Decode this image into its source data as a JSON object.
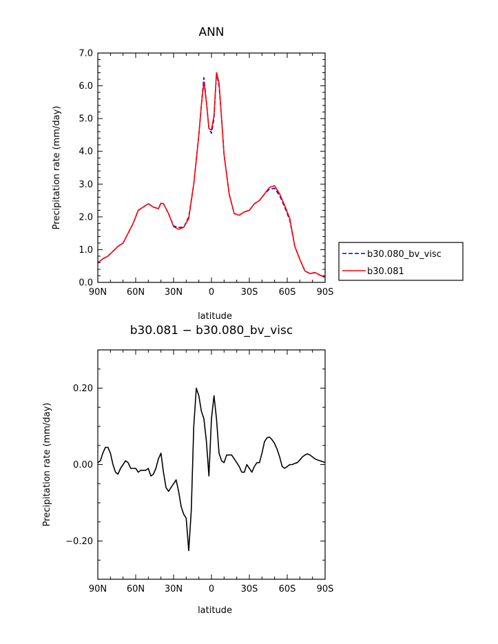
{
  "chart_data": [
    {
      "type": "line",
      "title": "ANN",
      "xlabel": "latitude",
      "ylabel": "Precipitation rate (mm/day)",
      "xlim": [
        90,
        -90
      ],
      "ylim": [
        0,
        7
      ],
      "xticks": [
        90,
        60,
        30,
        0,
        -30,
        -60,
        -90
      ],
      "xtick_labels": [
        "90N",
        "60N",
        "30N",
        "0",
        "30S",
        "60S",
        "90S"
      ],
      "yticks": [
        0,
        1,
        2,
        3,
        4,
        5,
        6,
        7
      ],
      "ytick_labels": [
        "0.0",
        "1.0",
        "2.0",
        "3.0",
        "4.0",
        "5.0",
        "6.0",
        "7.0"
      ],
      "legend_position": "outside-right",
      "x": [
        90,
        86,
        82,
        78,
        74,
        70,
        66,
        62,
        58,
        54,
        50,
        46,
        42,
        40,
        38,
        34,
        30,
        26,
        22,
        18,
        14,
        10,
        8,
        6,
        4,
        2,
        0,
        -2,
        -4,
        -6,
        -8,
        -10,
        -14,
        -18,
        -22,
        -26,
        -30,
        -34,
        -38,
        -42,
        -46,
        -50,
        -54,
        -58,
        -62,
        -66,
        -70,
        -74,
        -78,
        -82,
        -86,
        -90
      ],
      "series": [
        {
          "name": "b30.080_bv_visc",
          "color": "#0000cc",
          "dash": "dashed",
          "values": [
            0.6,
            0.72,
            0.8,
            0.95,
            1.1,
            1.2,
            1.5,
            1.8,
            2.2,
            2.3,
            2.4,
            2.3,
            2.25,
            2.42,
            2.4,
            2.1,
            1.72,
            1.68,
            1.68,
            2.0,
            3.0,
            4.5,
            5.4,
            6.25,
            5.5,
            4.7,
            4.55,
            5.0,
            6.4,
            6.0,
            5.0,
            3.9,
            2.7,
            2.1,
            2.05,
            2.15,
            2.2,
            2.4,
            2.5,
            2.7,
            2.85,
            2.87,
            2.65,
            2.3,
            1.9,
            1.1,
            0.7,
            0.35,
            0.27,
            0.3,
            0.22,
            0.15
          ]
        },
        {
          "name": "b30.081",
          "color": "#ff0000",
          "dash": "solid",
          "values": [
            0.6,
            0.72,
            0.8,
            0.95,
            1.1,
            1.2,
            1.5,
            1.8,
            2.2,
            2.3,
            2.4,
            2.3,
            2.25,
            2.42,
            2.4,
            2.1,
            1.7,
            1.62,
            1.68,
            1.95,
            3.0,
            4.5,
            5.4,
            6.1,
            5.5,
            4.7,
            4.65,
            5.1,
            6.4,
            6.1,
            5.0,
            3.9,
            2.7,
            2.1,
            2.05,
            2.15,
            2.2,
            2.4,
            2.5,
            2.7,
            2.9,
            2.95,
            2.7,
            2.35,
            1.95,
            1.1,
            0.7,
            0.35,
            0.27,
            0.3,
            0.22,
            0.15
          ]
        }
      ]
    },
    {
      "type": "line",
      "title": "b30.081 − b30.080_bv_visc",
      "xlabel": "latitude",
      "ylabel": "Precipitation rate (mm/day)",
      "xlim": [
        90,
        -90
      ],
      "ylim": [
        -0.3,
        0.3
      ],
      "xticks": [
        90,
        60,
        30,
        0,
        -30,
        -60,
        -90
      ],
      "xtick_labels": [
        "90N",
        "60N",
        "30N",
        "0",
        "30S",
        "60S",
        "90S"
      ],
      "yticks": [
        -0.2,
        0,
        0.2
      ],
      "ytick_labels": [
        "−0.20",
        "0.00",
        "0.20"
      ],
      "x": [
        90,
        88,
        86,
        84,
        82,
        80,
        78,
        76,
        74,
        72,
        70,
        68,
        66,
        64,
        62,
        60,
        58,
        56,
        54,
        52,
        50,
        48,
        46,
        44,
        42,
        40,
        38,
        36,
        34,
        32,
        30,
        28,
        26,
        24,
        22,
        20,
        18,
        16,
        14,
        12,
        10,
        8,
        6,
        4,
        2,
        0,
        -2,
        -4,
        -6,
        -8,
        -10,
        -12,
        -14,
        -16,
        -18,
        -20,
        -22,
        -24,
        -26,
        -28,
        -30,
        -32,
        -34,
        -36,
        -38,
        -40,
        -42,
        -44,
        -46,
        -48,
        -50,
        -52,
        -54,
        -56,
        -58,
        -60,
        -62,
        -64,
        -66,
        -68,
        -70,
        -72,
        -74,
        -76,
        -78,
        -80,
        -82,
        -84,
        -86,
        -88,
        -90
      ],
      "series": [
        {
          "name": "",
          "color": "#000000",
          "dash": "solid",
          "values": [
            0.005,
            0.01,
            0.03,
            0.045,
            0.045,
            0.03,
            0.0,
            -0.02,
            -0.025,
            -0.01,
            0.0,
            0.01,
            0.005,
            -0.01,
            -0.01,
            -0.01,
            -0.02,
            -0.015,
            -0.015,
            -0.015,
            -0.01,
            -0.03,
            -0.025,
            -0.01,
            0.015,
            0.03,
            -0.02,
            -0.06,
            -0.07,
            -0.06,
            -0.05,
            -0.04,
            -0.07,
            -0.11,
            -0.13,
            -0.14,
            -0.225,
            -0.12,
            0.1,
            0.2,
            0.18,
            0.14,
            0.12,
            0.06,
            -0.03,
            0.12,
            0.18,
            0.12,
            0.03,
            0.01,
            0.005,
            0.025,
            0.025,
            0.025,
            0.015,
            0.005,
            -0.005,
            -0.02,
            -0.02,
            0.0,
            -0.01,
            -0.02,
            -0.005,
            0.005,
            0.005,
            0.03,
            0.06,
            0.07,
            0.072,
            0.065,
            0.055,
            0.04,
            0.02,
            -0.005,
            -0.01,
            -0.005,
            0.0,
            0.0,
            0.003,
            0.005,
            0.012,
            0.02,
            0.025,
            0.028,
            0.025,
            0.02,
            0.015,
            0.012,
            0.01,
            0.008,
            0.005
          ]
        }
      ]
    }
  ]
}
